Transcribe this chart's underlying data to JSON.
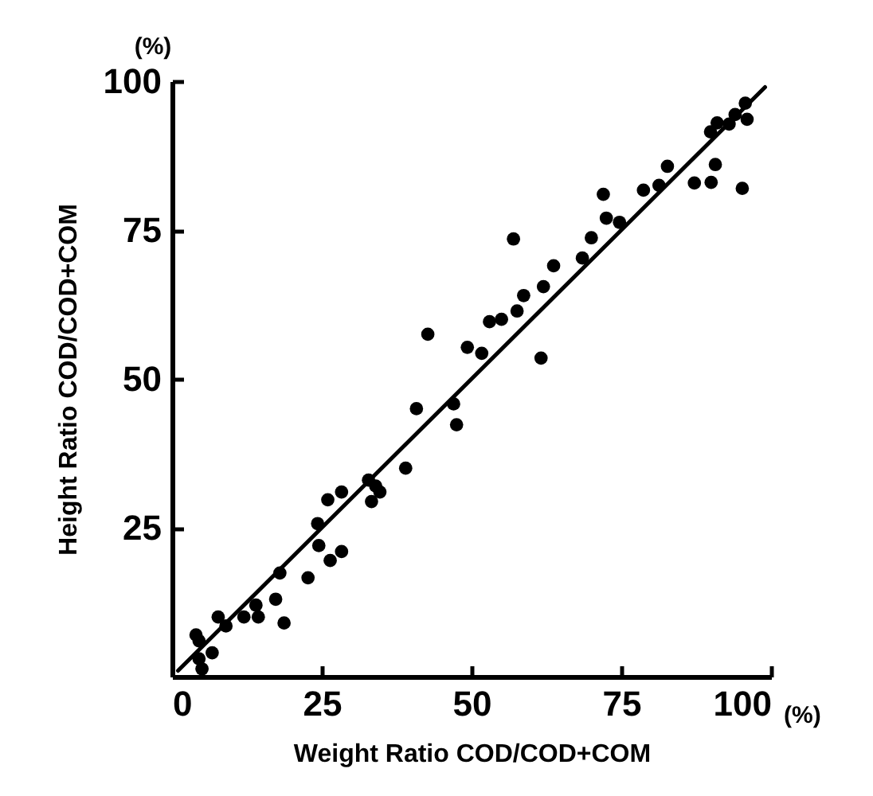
{
  "chart_data": {
    "type": "scatter",
    "xlabel": "Weight Ratio COD/COD+COM",
    "ylabel": "Height Ratio COD/COD+COM",
    "annotations": [
      "(%)",
      "(%)"
    ],
    "xlim": [
      0,
      100
    ],
    "ylim": [
      0,
      100
    ],
    "xticks": [
      0,
      25,
      50,
      75,
      100
    ],
    "yticks": [
      25,
      50,
      75,
      100
    ],
    "grid": false,
    "series": [
      {
        "color": "#000000",
        "marker": "circle",
        "x": [
          5,
          4.5,
          6.7,
          4,
          4.5,
          7.7,
          9,
          12,
          14.4,
          14,
          18.7,
          17.3,
          18,
          22.7,
          24.5,
          24.3,
          26.4,
          28.3,
          26,
          28.3,
          32.8,
          34,
          33.3,
          34.7,
          39,
          40.8,
          47,
          47.5,
          42.7,
          49.3,
          51.7,
          53,
          55,
          57.6,
          58.7,
          61.6,
          62,
          63.7,
          68.5,
          57,
          70,
          72,
          72.5,
          74.7,
          78.7,
          81.3,
          82.7,
          87.2,
          90,
          90.7,
          95.2,
          89.9,
          93,
          94,
          95.7,
          96,
          91
        ],
        "values": [
          1.3,
          3,
          4,
          7,
          6,
          10,
          8.5,
          10,
          10,
          12,
          9,
          13,
          17.4,
          16.6,
          22,
          25.7,
          19.5,
          21,
          29.7,
          31,
          33,
          32,
          29.4,
          31,
          35,
          45,
          45.8,
          42.3,
          57.5,
          55.3,
          54.3,
          59.6,
          60,
          61.4,
          64,
          53.5,
          65.5,
          69,
          70.3,
          73.5,
          73.7,
          81,
          77,
          76.3,
          81.7,
          82.5,
          85.7,
          82.9,
          83,
          86,
          82,
          91.5,
          92.8,
          94.4,
          96.3,
          93.6,
          93
        ]
      },
      {
        "type": "line",
        "color": "#000000",
        "line_style": "solid",
        "x": [
          1,
          99
        ],
        "values": [
          1,
          99
        ]
      }
    ]
  }
}
